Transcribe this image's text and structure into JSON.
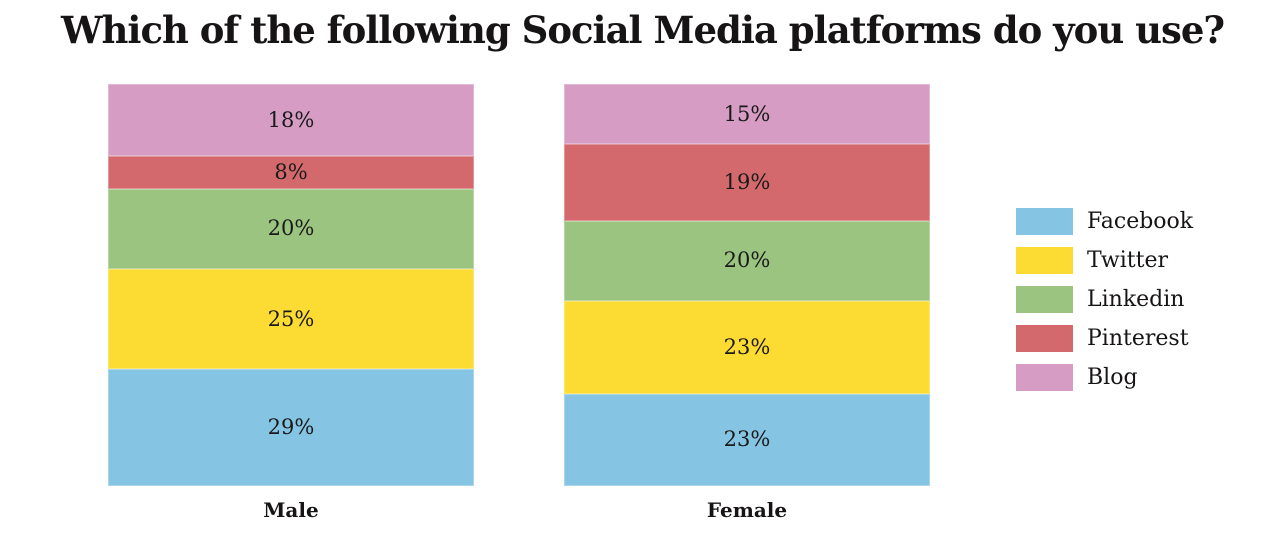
{
  "page": {
    "background_color": "#FFFFFF",
    "text_color": "#171415"
  },
  "chart_data": {
    "type": "bar",
    "variant": "stacked-percentage-column",
    "title": "Which of the following Social Media platforms do you use?",
    "xlabel": "",
    "ylabel": "",
    "unit": "%",
    "value_label_format": "{value}%",
    "categories": [
      "Male",
      "Female"
    ],
    "series": [
      {
        "name": "Facebook",
        "color": "#85C4E3",
        "values": [
          29,
          23
        ]
      },
      {
        "name": "Twitter",
        "color": "#FCDB33",
        "values": [
          25,
          23
        ]
      },
      {
        "name": "Linkedin",
        "color": "#9BC480",
        "values": [
          20,
          20
        ]
      },
      {
        "name": "Pinterest",
        "color": "#D4696D",
        "values": [
          8,
          19
        ]
      },
      {
        "name": "Blog",
        "color": "#D69CC3",
        "values": [
          18,
          15
        ]
      }
    ],
    "stack_order_bottom_to_top": [
      "Facebook",
      "Twitter",
      "Linkedin",
      "Pinterest",
      "Blog"
    ],
    "value_labels": {
      "Male": [
        "29%",
        "25%",
        "20%",
        "8%",
        "18%"
      ],
      "Female": [
        "23%",
        "23%",
        "20%",
        "19%",
        "15%"
      ]
    },
    "ylim": [
      0,
      100
    ],
    "grid": false,
    "axes_visible": false,
    "legend_position": "right",
    "legend_labels": [
      "Facebook",
      "Twitter",
      "Linkedin",
      "Pinterest",
      "Blog"
    ]
  }
}
